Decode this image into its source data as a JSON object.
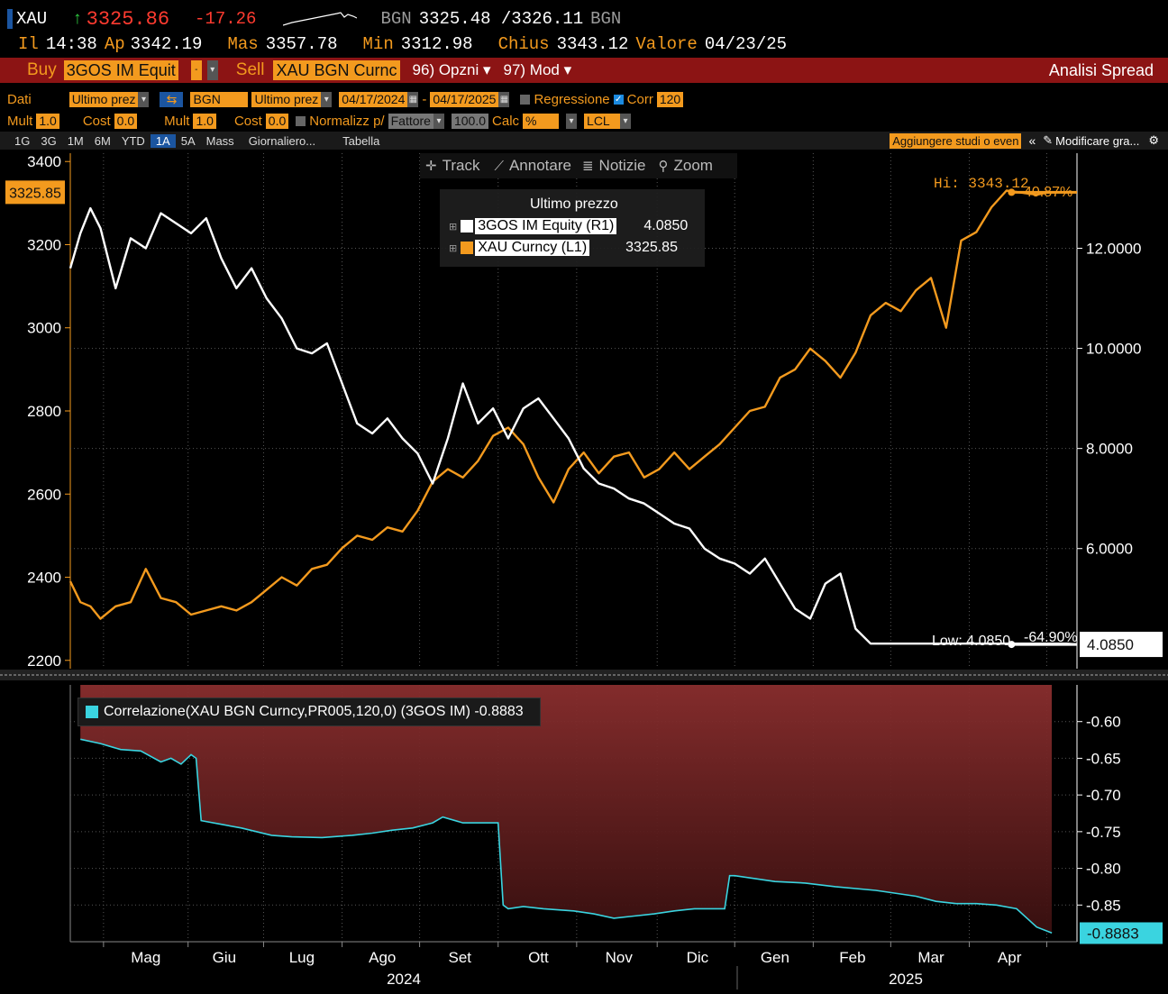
{
  "header": {
    "ticker": "XAU",
    "arrow": "↑",
    "price": "3325.86",
    "change": "-17.26",
    "source": "BGN",
    "bid_ask": "3325.48 /3326.11",
    "source2": "BGN",
    "time_label": "Il",
    "time": "14:38",
    "open_label": "Ap",
    "open": "3342.19",
    "high_label": "Mas",
    "high": "3357.78",
    "low_label": "Min",
    "low": "3312.98",
    "close_label": "Chius",
    "close": "3343.12",
    "value_label": "Valore",
    "value_date": "04/23/25"
  },
  "actionbar": {
    "buy": "Buy",
    "buy_field": "3GOS IM Equit",
    "sell": "Sell",
    "sell_field": "XAU BGN Curnc",
    "options": "96) Opzni ▾",
    "mode": "97) Mod ▾",
    "title": "Analisi Spread"
  },
  "params1": {
    "data_label": "Dati",
    "field1": "Ultimo prez",
    "src": "BGN",
    "field2": "Ultimo prez",
    "start": "04/17/2024",
    "dash": "-",
    "end": "04/17/2025",
    "regression": "Regressione",
    "corr": "Corr",
    "corr_value": "120"
  },
  "params2": {
    "mult_label": "Mult",
    "mult1": "1.0",
    "cost_label": "Cost",
    "cost1": "0.0",
    "mult2": "1.0",
    "cost2": "0.0",
    "normalize": "Normalizz p/",
    "factor": "Fattore",
    "factor_value": "100.0",
    "calc_label": "Calc",
    "calc_value": "%",
    "currency": "LCL"
  },
  "tabs": {
    "items": [
      "1G",
      "3G",
      "1M",
      "6M",
      "YTD",
      "1A",
      "5A",
      "Mass",
      "Giornaliero...",
      "Tabella"
    ],
    "active_index": 5,
    "add_studies": "Aggiungere studi o even",
    "modify": "Modificare gra..."
  },
  "toolbar": {
    "track": "Track",
    "annotate": "Annotare",
    "news": "Notizie",
    "zoom": "Zoom"
  },
  "colors": {
    "white_series": "#ffffff",
    "orange_series": "#f39a1e",
    "corr_line": "#3ad4e0",
    "corr_fill_top": "#8a2e2e",
    "corr_fill_bottom": "#3a1010"
  },
  "chart_data": [
    {
      "type": "line",
      "legend_title": "Ultimo prezzo",
      "legend": [
        {
          "name": "3GOS IM Equity  (R1)",
          "value": "4.0850",
          "color": "#ffffff"
        },
        {
          "name": "XAU Curncy  (L1)",
          "value": "3325.85",
          "color": "#f39a1e"
        }
      ],
      "left_axis": {
        "ticks": [
          "3400",
          "3200",
          "3000",
          "2800",
          "2600",
          "2400",
          "2200"
        ],
        "range": [
          2180,
          3420
        ],
        "current": "3325.85"
      },
      "right_axis": {
        "ticks": [
          "12.0000",
          "10.0000",
          "8.0000",
          "6.0000"
        ],
        "range": [
          3.6,
          13.9
        ],
        "current": "4.0850"
      },
      "annotations": {
        "hi": "Hi: 3343.12",
        "hi_pct": "40.87%",
        "low": "Low: 4.0850",
        "low_pct": "-64.90%"
      },
      "x_months": [
        "Mag",
        "Giu",
        "Lug",
        "Ago",
        "Set",
        "Ott",
        "Nov",
        "Dic",
        "Gen",
        "Feb",
        "Mar",
        "Apr"
      ],
      "x_years": [
        "2024",
        "2025"
      ],
      "series": [
        {
          "name": "XAU Curncy",
          "axis": "left",
          "color": "#f39a1e",
          "x": [
            0,
            0.01,
            0.02,
            0.03,
            0.045,
            0.06,
            0.075,
            0.09,
            0.105,
            0.12,
            0.135,
            0.15,
            0.165,
            0.18,
            0.195,
            0.21,
            0.225,
            0.24,
            0.255,
            0.27,
            0.285,
            0.3,
            0.315,
            0.33,
            0.345,
            0.36,
            0.375,
            0.39,
            0.405,
            0.42,
            0.435,
            0.45,
            0.465,
            0.48,
            0.495,
            0.51,
            0.525,
            0.54,
            0.555,
            0.57,
            0.585,
            0.6,
            0.615,
            0.63,
            0.645,
            0.66,
            0.675,
            0.69,
            0.705,
            0.72,
            0.735,
            0.75,
            0.765,
            0.78,
            0.795,
            0.81,
            0.825,
            0.84,
            0.855,
            0.87,
            0.885,
            0.9,
            0.915,
            0.93,
            0.945,
            0.96,
            0.97,
            0.98,
            0.99,
            1
          ],
          "values": [
            2390,
            2340,
            2330,
            2300,
            2330,
            2340,
            2420,
            2350,
            2340,
            2310,
            2320,
            2330,
            2320,
            2340,
            2370,
            2400,
            2380,
            2420,
            2430,
            2470,
            2500,
            2490,
            2520,
            2510,
            2560,
            2630,
            2660,
            2640,
            2680,
            2740,
            2760,
            2720,
            2640,
            2580,
            2660,
            2700,
            2650,
            2690,
            2700,
            2640,
            2660,
            2700,
            2660,
            2690,
            2720,
            2760,
            2800,
            2810,
            2880,
            2900,
            2950,
            2920,
            2880,
            2940,
            3030,
            3060,
            3040,
            3090,
            3120,
            3000,
            3210,
            3230,
            3290,
            3330,
            3325,
            3320,
            3325,
            3326,
            3326,
            3326
          ]
        },
        {
          "name": "3GOS IM Equity",
          "axis": "right",
          "color": "#ffffff",
          "x": [
            0,
            0.01,
            0.02,
            0.03,
            0.045,
            0.06,
            0.075,
            0.09,
            0.105,
            0.12,
            0.135,
            0.15,
            0.165,
            0.18,
            0.195,
            0.21,
            0.225,
            0.24,
            0.255,
            0.27,
            0.285,
            0.3,
            0.315,
            0.33,
            0.345,
            0.36,
            0.375,
            0.39,
            0.405,
            0.42,
            0.435,
            0.45,
            0.465,
            0.48,
            0.495,
            0.51,
            0.525,
            0.54,
            0.555,
            0.57,
            0.585,
            0.6,
            0.615,
            0.63,
            0.645,
            0.66,
            0.675,
            0.69,
            0.705,
            0.72,
            0.735,
            0.75,
            0.765,
            0.78,
            0.795,
            0.81,
            0.825,
            0.84,
            0.855,
            0.87,
            0.885,
            0.9,
            0.915,
            0.93,
            0.945,
            0.96,
            0.97,
            0.98,
            0.99,
            1
          ],
          "values": [
            11.6,
            12.3,
            12.8,
            12.4,
            11.2,
            12.2,
            12.0,
            12.7,
            12.5,
            12.3,
            12.6,
            11.8,
            11.2,
            11.6,
            11.0,
            10.6,
            10.0,
            9.9,
            10.1,
            9.3,
            8.5,
            8.3,
            8.6,
            8.2,
            7.9,
            7.3,
            8.2,
            9.3,
            8.5,
            8.8,
            8.2,
            8.8,
            9.0,
            8.6,
            8.2,
            7.6,
            7.3,
            7.2,
            7.0,
            6.9,
            6.7,
            6.5,
            6.4,
            6.0,
            5.8,
            5.7,
            5.5,
            5.8,
            5.3,
            4.8,
            4.6,
            5.3,
            5.5,
            4.4,
            4.1,
            4.1,
            4.1,
            4.1,
            4.1,
            4.1,
            4.1,
            4.1,
            4.1,
            4.1,
            4.1,
            4.1,
            4.1,
            4.1,
            4.1,
            4.085
          ]
        }
      ]
    },
    {
      "type": "area",
      "legend": "Correlazione(XAU BGN Curncy,PR005,120,0) (3GOS IM) -0.8883",
      "axis": {
        "ticks": [
          "-0.60",
          "-0.65",
          "-0.70",
          "-0.75",
          "-0.80",
          "-0.85"
        ],
        "range": [
          -0.9,
          -0.55
        ],
        "current": "-0.8883"
      },
      "series": [
        {
          "name": "Correlazione",
          "color": "#3ad4e0",
          "x": [
            0.01,
            0.03,
            0.05,
            0.07,
            0.09,
            0.1,
            0.11,
            0.12,
            0.125,
            0.13,
            0.15,
            0.17,
            0.2,
            0.22,
            0.25,
            0.28,
            0.3,
            0.32,
            0.34,
            0.36,
            0.37,
            0.39,
            0.41,
            0.425,
            0.43,
            0.435,
            0.45,
            0.47,
            0.5,
            0.52,
            0.54,
            0.56,
            0.58,
            0.6,
            0.62,
            0.64,
            0.65,
            0.655,
            0.66,
            0.7,
            0.73,
            0.76,
            0.8,
            0.84,
            0.86,
            0.88,
            0.9,
            0.92,
            0.94,
            0.96,
            0.975
          ],
          "values": [
            -0.624,
            -0.63,
            -0.638,
            -0.64,
            -0.655,
            -0.65,
            -0.658,
            -0.645,
            -0.65,
            -0.735,
            -0.74,
            -0.745,
            -0.755,
            -0.757,
            -0.758,
            -0.755,
            -0.752,
            -0.748,
            -0.745,
            -0.738,
            -0.73,
            -0.738,
            -0.738,
            -0.738,
            -0.85,
            -0.855,
            -0.852,
            -0.855,
            -0.858,
            -0.862,
            -0.868,
            -0.865,
            -0.862,
            -0.858,
            -0.855,
            -0.855,
            -0.855,
            -0.81,
            -0.81,
            -0.818,
            -0.82,
            -0.825,
            -0.83,
            -0.838,
            -0.845,
            -0.848,
            -0.848,
            -0.85,
            -0.855,
            -0.88,
            -0.888
          ]
        }
      ]
    }
  ]
}
